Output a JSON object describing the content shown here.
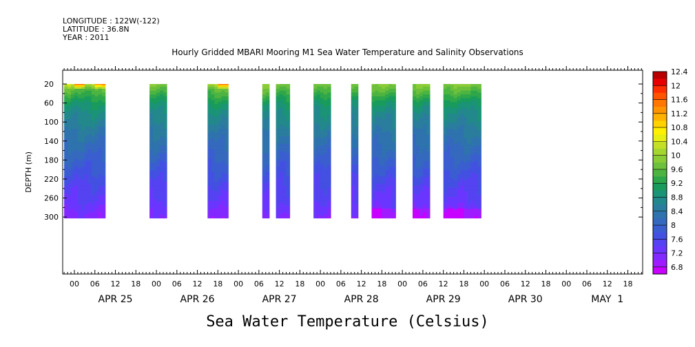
{
  "header": {
    "longitude": "LONGITUDE : 122W(-122)",
    "latitude": "LATITUDE : 36.8N",
    "year": "YEAR : 2011",
    "title": "Hourly Gridded MBARI Mooring M1 Sea Water Temperature and Salinity Observations"
  },
  "footer": {
    "label": "Sea Water Temperature (Celsius)"
  },
  "chart_data": {
    "type": "heatmap",
    "title": "Hourly Gridded MBARI Mooring M1 Sea Water Temperature and Salinity Observations",
    "xlabel": "",
    "ylabel": "DEPTH (m)",
    "colorbar_label": "Sea Water Temperature (Celsius)",
    "y_axis": {
      "range": [
        300,
        10
      ],
      "inverted": true,
      "ticks": [
        20,
        60,
        100,
        140,
        180,
        220,
        260,
        300
      ]
    },
    "x_axis": {
      "start": "APR 24 21:00",
      "end": "MAY 2 00:00",
      "hour_ticks": [
        "00",
        "06",
        "12",
        "18"
      ],
      "day_labels": [
        {
          "label": "APR 25",
          "center_hour": 12
        },
        {
          "label": "APR 26",
          "center_hour": 36
        },
        {
          "label": "APR 27",
          "center_hour": 60
        },
        {
          "label": "APR 28",
          "center_hour": 84
        },
        {
          "label": "APR 29",
          "center_hour": 108
        },
        {
          "label": "APR 30",
          "center_hour": 132
        },
        {
          "label": "MAY  1",
          "center_hour": 156
        }
      ]
    },
    "colorbar": {
      "levels": [
        6.8,
        7.0,
        7.2,
        7.4,
        7.6,
        7.8,
        8.0,
        8.2,
        8.4,
        8.6,
        8.8,
        9.0,
        9.2,
        9.4,
        9.6,
        9.8,
        10.0,
        10.2,
        10.4,
        10.6,
        10.8,
        11.0,
        11.2,
        11.4,
        11.6,
        11.8,
        12.0,
        12.2,
        12.4,
        12.6
      ],
      "labels": [
        "6.8",
        "7.2",
        "7.6",
        "8",
        "8.4",
        "8.8",
        "9.2",
        "9.6",
        "10",
        "10.4",
        "10.8",
        "11.2",
        "11.6",
        "12",
        "12.4"
      ],
      "colors": [
        "#c800ff",
        "#9f1cff",
        "#8229ff",
        "#6a36ff",
        "#5543f2",
        "#4350e2",
        "#3a5ed0",
        "#3469be",
        "#2e73ad",
        "#2a7d9d",
        "#22888b",
        "#1a9376",
        "#199b5c",
        "#2ea64a",
        "#4db441",
        "#6cc03b",
        "#8acc36",
        "#a5d62f",
        "#c4e026",
        "#e6ee12",
        "#ffef00",
        "#ffd200",
        "#ffb200",
        "#ff9400",
        "#ff7600",
        "#ff5400",
        "#ff2e00",
        "#e60000",
        "#b80000"
      ]
    },
    "data_segments_hours": [
      {
        "start": 0,
        "end": 11
      },
      {
        "start": 25,
        "end": 29
      },
      {
        "start": 42,
        "end": 47
      },
      {
        "start": 58,
        "end": 59
      },
      {
        "start": 62,
        "end": 65
      },
      {
        "start": 73,
        "end": 77
      },
      {
        "start": 84,
        "end": 85
      },
      {
        "start": 90,
        "end": 96
      },
      {
        "start": 102,
        "end": 106
      },
      {
        "start": 111,
        "end": 121
      }
    ],
    "temperature_profile": [
      {
        "depth": 20,
        "temp": 10.0
      },
      {
        "depth": 40,
        "temp": 9.6
      },
      {
        "depth": 60,
        "temp": 9.2
      },
      {
        "depth": 80,
        "temp": 8.95
      },
      {
        "depth": 100,
        "temp": 8.8
      },
      {
        "depth": 120,
        "temp": 8.6
      },
      {
        "depth": 140,
        "temp": 8.45
      },
      {
        "depth": 160,
        "temp": 8.3
      },
      {
        "depth": 180,
        "temp": 8.15
      },
      {
        "depth": 200,
        "temp": 8.0
      },
      {
        "depth": 220,
        "temp": 7.85
      },
      {
        "depth": 240,
        "temp": 7.7
      },
      {
        "depth": 260,
        "temp": 7.6
      },
      {
        "depth": 280,
        "temp": 7.45
      },
      {
        "depth": 300,
        "temp": 7.3
      }
    ]
  }
}
